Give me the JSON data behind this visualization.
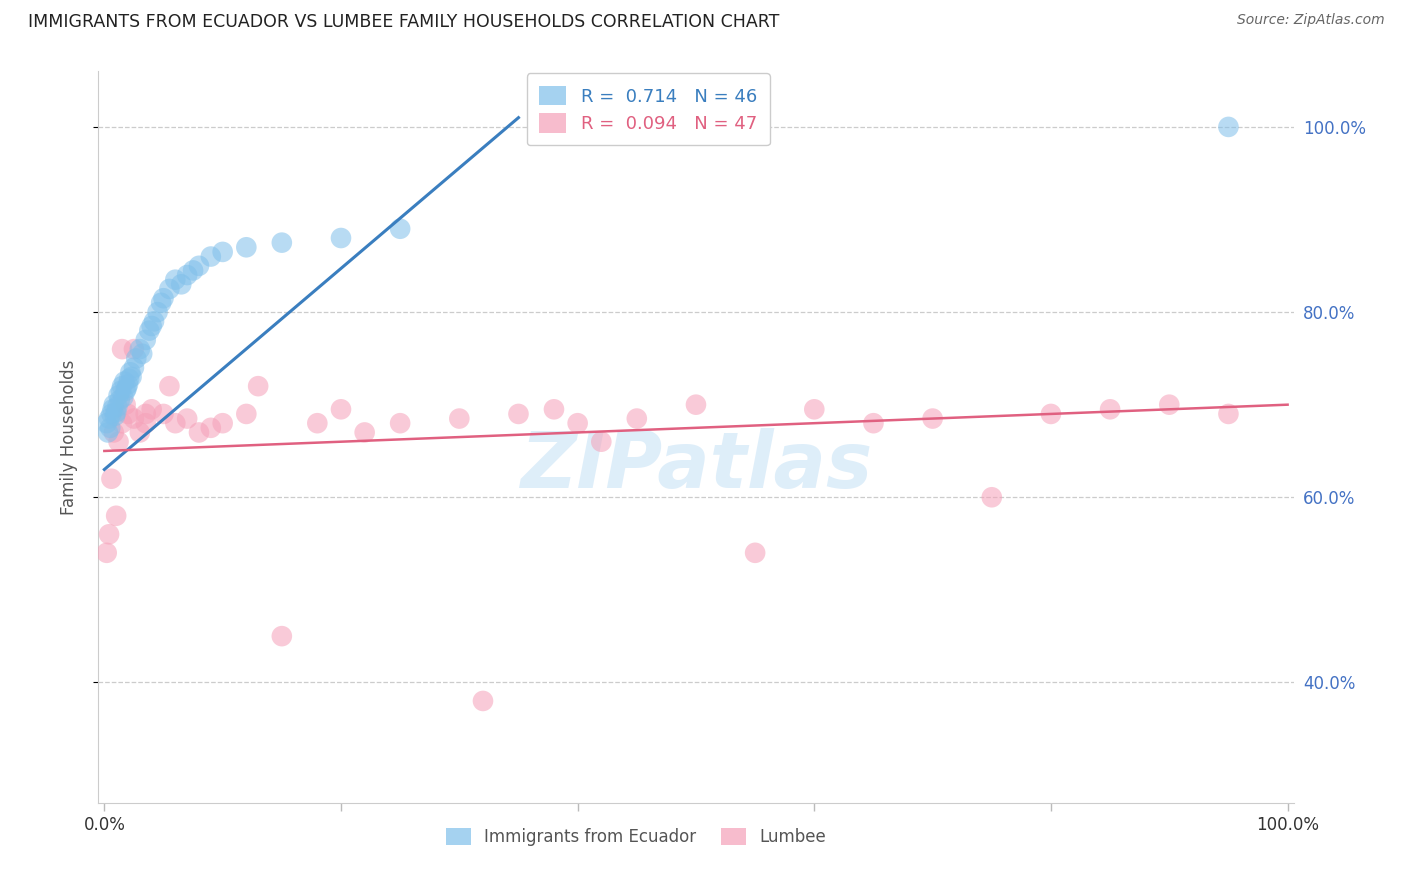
{
  "title": "IMMIGRANTS FROM ECUADOR VS LUMBEE FAMILY HOUSEHOLDS CORRELATION CHART",
  "source": "Source: ZipAtlas.com",
  "ylabel": "Family Households",
  "ytick_labels": [
    "40.0%",
    "60.0%",
    "80.0%",
    "100.0%"
  ],
  "ytick_values": [
    0.4,
    0.6,
    0.8,
    1.0
  ],
  "ymin": 0.27,
  "ymax": 1.06,
  "xmin": -0.005,
  "xmax": 1.005,
  "blue_R": 0.714,
  "blue_N": 46,
  "pink_R": 0.094,
  "pink_N": 47,
  "blue_color": "#7fbfea",
  "pink_color": "#f5a0b8",
  "blue_line_color": "#3a7ebf",
  "pink_line_color": "#e06080",
  "legend_label_blue": "Immigrants from Ecuador",
  "legend_label_pink": "Lumbee",
  "watermark": "ZIPatlas",
  "blue_scatter_x": [
    0.002,
    0.003,
    0.004,
    0.005,
    0.006,
    0.007,
    0.008,
    0.009,
    0.01,
    0.011,
    0.012,
    0.013,
    0.014,
    0.015,
    0.016,
    0.017,
    0.018,
    0.019,
    0.02,
    0.021,
    0.022,
    0.023,
    0.025,
    0.027,
    0.03,
    0.032,
    0.035,
    0.038,
    0.04,
    0.042,
    0.045,
    0.048,
    0.05,
    0.055,
    0.06,
    0.065,
    0.07,
    0.075,
    0.08,
    0.09,
    0.1,
    0.12,
    0.15,
    0.2,
    0.25,
    0.95
  ],
  "blue_scatter_y": [
    0.68,
    0.67,
    0.685,
    0.675,
    0.69,
    0.695,
    0.7,
    0.688,
    0.692,
    0.698,
    0.71,
    0.705,
    0.715,
    0.72,
    0.708,
    0.725,
    0.715,
    0.718,
    0.722,
    0.728,
    0.735,
    0.73,
    0.74,
    0.75,
    0.76,
    0.755,
    0.77,
    0.78,
    0.785,
    0.79,
    0.8,
    0.81,
    0.815,
    0.825,
    0.835,
    0.83,
    0.84,
    0.845,
    0.85,
    0.86,
    0.865,
    0.87,
    0.875,
    0.88,
    0.89,
    1.0
  ],
  "pink_scatter_x": [
    0.002,
    0.004,
    0.006,
    0.008,
    0.01,
    0.012,
    0.015,
    0.018,
    0.02,
    0.025,
    0.03,
    0.035,
    0.04,
    0.05,
    0.06,
    0.07,
    0.08,
    0.09,
    0.1,
    0.12,
    0.15,
    0.18,
    0.2,
    0.25,
    0.3,
    0.35,
    0.38,
    0.4,
    0.45,
    0.5,
    0.55,
    0.6,
    0.65,
    0.7,
    0.75,
    0.8,
    0.85,
    0.9,
    0.95,
    0.015,
    0.025,
    0.035,
    0.055,
    0.13,
    0.22,
    0.32,
    0.42
  ],
  "pink_scatter_y": [
    0.54,
    0.56,
    0.62,
    0.67,
    0.58,
    0.66,
    0.68,
    0.7,
    0.69,
    0.685,
    0.67,
    0.68,
    0.695,
    0.69,
    0.68,
    0.685,
    0.67,
    0.675,
    0.68,
    0.69,
    0.45,
    0.68,
    0.695,
    0.68,
    0.685,
    0.69,
    0.695,
    0.68,
    0.685,
    0.7,
    0.54,
    0.695,
    0.68,
    0.685,
    0.6,
    0.69,
    0.695,
    0.7,
    0.69,
    0.76,
    0.76,
    0.69,
    0.72,
    0.72,
    0.67,
    0.38,
    0.66
  ],
  "blue_trend_x": [
    0.0,
    0.35
  ],
  "blue_trend_y": [
    0.63,
    1.01
  ],
  "pink_trend_x": [
    0.0,
    1.0
  ],
  "pink_trend_y": [
    0.65,
    0.7
  ]
}
